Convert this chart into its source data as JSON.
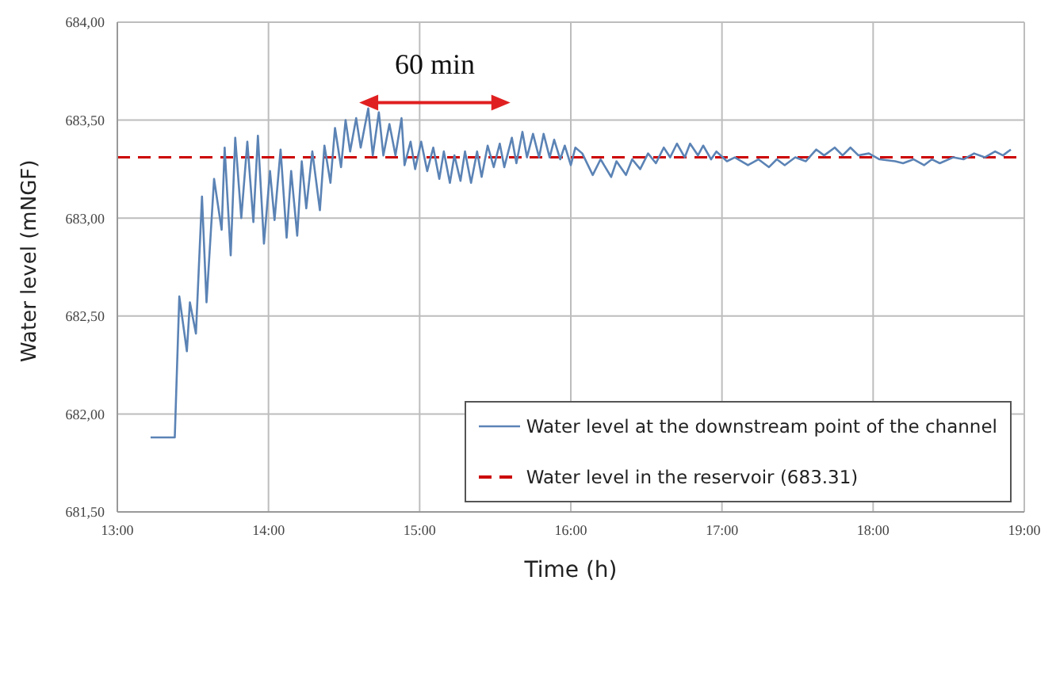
{
  "chart_data": {
    "type": "line",
    "xlabel": "Time (h)",
    "ylabel": "Water level (mNGF)",
    "annotations": [
      "60 min"
    ],
    "xlim": [
      13,
      19
    ],
    "xticks": [
      {
        "value": 13,
        "label": "13:00"
      },
      {
        "value": 14,
        "label": "14:00"
      },
      {
        "value": 15,
        "label": "15:00"
      },
      {
        "value": 16,
        "label": "16:00"
      },
      {
        "value": 17,
        "label": "17:00"
      },
      {
        "value": 18,
        "label": "18:00"
      },
      {
        "value": 19,
        "label": "19:00"
      }
    ],
    "ylim": [
      681.5,
      684
    ],
    "yticks": [
      {
        "value": 681.5,
        "label": "681,50"
      },
      {
        "value": 682,
        "label": "682,00"
      },
      {
        "value": 682.5,
        "label": "682,50"
      },
      {
        "value": 683,
        "label": "683,00"
      },
      {
        "value": 683.5,
        "label": "683,50"
      },
      {
        "value": 684,
        "label": "684,00"
      }
    ],
    "grid": true,
    "legend": "bottom right",
    "line_style": "solid",
    "marker": "none",
    "ref_lines": [
      {
        "axis": "y",
        "value": 683.31,
        "label": "Water level in the reservoir (683.31)",
        "color": "#cc0000",
        "line_style": "dashed"
      }
    ],
    "series": [
      {
        "name": "Water level at the downstream point of the channel",
        "color": "#5b83b5",
        "x": [
          13.22,
          13.38,
          13.41,
          13.46,
          13.48,
          13.52,
          13.56,
          13.59,
          13.64,
          13.69,
          13.71,
          13.75,
          13.78,
          13.82,
          13.86,
          13.9,
          13.93,
          13.97,
          14.01,
          14.04,
          14.08,
          14.12,
          14.15,
          14.19,
          14.22,
          14.25,
          14.29,
          14.34,
          14.37,
          14.41,
          14.44,
          14.48,
          14.51,
          14.54,
          14.58,
          14.61,
          14.66,
          14.69,
          14.73,
          14.76,
          14.8,
          14.84,
          14.88,
          14.9,
          14.94,
          14.97,
          15.01,
          15.05,
          15.09,
          15.13,
          15.16,
          15.2,
          15.23,
          15.27,
          15.3,
          15.34,
          15.38,
          15.41,
          15.45,
          15.49,
          15.53,
          15.56,
          15.61,
          15.64,
          15.68,
          15.71,
          15.75,
          15.79,
          15.82,
          15.86,
          15.89,
          15.93,
          15.96,
          16.0,
          16.03,
          16.076,
          16.145,
          16.197,
          16.267,
          16.302,
          16.365,
          16.406,
          16.459,
          16.511,
          16.563,
          16.615,
          16.657,
          16.702,
          16.754,
          16.789,
          16.841,
          16.876,
          16.928,
          16.963,
          17.033,
          17.085,
          17.172,
          17.241,
          17.311,
          17.363,
          17.415,
          17.485,
          17.554,
          17.624,
          17.676,
          17.746,
          17.798,
          17.85,
          17.903,
          17.972,
          18.042,
          18.146,
          18.198,
          18.268,
          18.337,
          18.389,
          18.441,
          18.529,
          18.598,
          18.668,
          18.738,
          18.807,
          18.859,
          18.911
        ],
        "values": [
          681.88,
          681.88,
          682.6,
          682.32,
          682.57,
          682.41,
          683.11,
          682.57,
          683.2,
          682.94,
          683.36,
          682.81,
          683.41,
          683.0,
          683.39,
          682.98,
          683.42,
          682.87,
          683.24,
          682.99,
          683.35,
          682.9,
          683.24,
          682.91,
          683.29,
          683.05,
          683.34,
          683.04,
          683.37,
          683.18,
          683.46,
          683.26,
          683.5,
          683.34,
          683.51,
          683.36,
          683.56,
          683.32,
          683.54,
          683.32,
          683.48,
          683.32,
          683.51,
          683.27,
          683.39,
          683.25,
          683.39,
          683.24,
          683.36,
          683.2,
          683.34,
          683.18,
          683.32,
          683.19,
          683.34,
          683.18,
          683.34,
          683.21,
          683.37,
          683.26,
          683.38,
          683.26,
          683.41,
          683.28,
          683.44,
          683.31,
          683.43,
          683.31,
          683.43,
          683.31,
          683.4,
          683.3,
          683.37,
          683.27,
          683.36,
          683.33,
          683.22,
          683.3,
          683.21,
          683.29,
          683.22,
          683.3,
          683.25,
          683.33,
          683.28,
          683.36,
          683.31,
          683.38,
          683.31,
          683.38,
          683.32,
          683.37,
          683.3,
          683.34,
          683.29,
          683.31,
          683.27,
          683.3,
          683.26,
          683.3,
          683.27,
          683.31,
          683.29,
          683.35,
          683.32,
          683.36,
          683.32,
          683.36,
          683.32,
          683.33,
          683.3,
          683.29,
          683.28,
          683.3,
          683.27,
          683.3,
          683.28,
          683.31,
          683.3,
          683.33,
          683.31,
          683.34,
          683.32,
          683.35
        ]
      }
    ]
  }
}
